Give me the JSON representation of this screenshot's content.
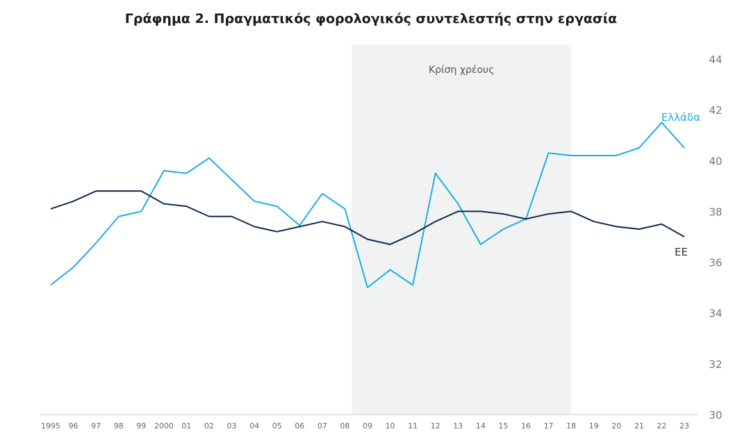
{
  "chart_data": {
    "type": "line",
    "title": "Γράφημα 2. Πραγματικός φορολογικός συντελεστής στην εργασία",
    "x": [
      1995,
      1996,
      1997,
      1998,
      1999,
      2000,
      2001,
      2002,
      2003,
      2004,
      2005,
      2006,
      2007,
      2008,
      2009,
      2010,
      2011,
      2012,
      2013,
      2014,
      2015,
      2016,
      2017,
      2018,
      2019,
      2020,
      2021,
      2022,
      2023
    ],
    "x_tick_labels": [
      "1995",
      "96",
      "97",
      "98",
      "99",
      "2000",
      "01",
      "02",
      "03",
      "04",
      "05",
      "06",
      "07",
      "08",
      "09",
      "10",
      "11",
      "12",
      "13",
      "14",
      "15",
      "16",
      "17",
      "18",
      "19",
      "20",
      "21",
      "22",
      "23"
    ],
    "ylim": [
      30,
      44
    ],
    "y_ticks": [
      "30",
      "32",
      "34",
      "36",
      "38",
      "40",
      "42",
      "44"
    ],
    "y_axis_position": "right",
    "grid": false,
    "series": [
      {
        "name": "Ελλάδα",
        "color": "#1aaee3",
        "values": [
          35.1,
          35.8,
          36.75,
          37.8,
          38.0,
          39.6,
          39.5,
          40.1,
          39.25,
          38.4,
          38.2,
          37.45,
          38.7,
          38.1,
          35.0,
          35.7,
          35.1,
          39.5,
          38.3,
          36.7,
          37.3,
          37.7,
          40.3,
          40.2,
          40.2,
          40.2,
          40.5,
          41.5,
          40.5
        ]
      },
      {
        "name": "ΕΕ",
        "color": "#13294b",
        "values": [
          38.1,
          38.4,
          38.8,
          38.8,
          38.8,
          38.3,
          38.2,
          37.8,
          37.8,
          37.4,
          37.2,
          37.4,
          37.6,
          37.4,
          36.9,
          36.7,
          37.1,
          37.6,
          38.0,
          38.0,
          37.9,
          37.7,
          37.9,
          38.0,
          37.6,
          37.4,
          37.3,
          37.5,
          37.0
        ]
      }
    ],
    "shaded_region": {
      "label": "Κρίση χρέους",
      "from": 2008.3,
      "to": 2018,
      "color": "#f1f3f3"
    }
  }
}
